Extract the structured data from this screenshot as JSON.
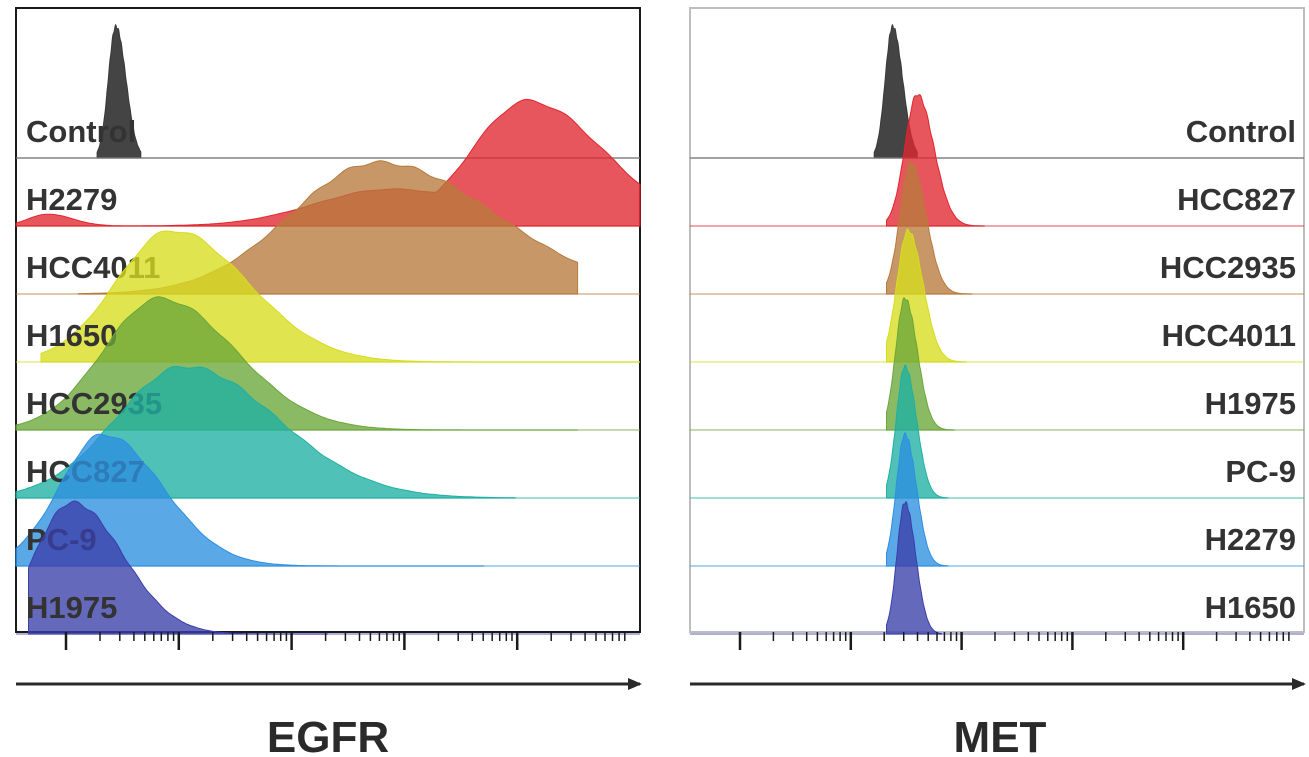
{
  "chart_data": [
    {
      "type": "area",
      "chart_kind": "staggered flow cytometry histograms",
      "xlabel": "EGFR",
      "x_scale": "log",
      "rows": [
        {
          "name": "Control",
          "peaks": [
            {
              "mode": 0.16,
              "width": 0.012,
              "height": 1.0
            }
          ],
          "range": [
            0.13,
            0.2
          ],
          "color": "#3a3a3a"
        },
        {
          "name": "H2279",
          "peaks": [
            {
              "mode": 0.82,
              "width": 0.09,
              "height": 0.95
            },
            {
              "mode": 0.6,
              "width": 0.12,
              "height": 0.28
            },
            {
              "mode": 0.05,
              "width": 0.03,
              "height": 0.09
            }
          ],
          "range": [
            0.0,
            1.0
          ],
          "color": "#e0262e"
        },
        {
          "name": "HCC4011",
          "peaks": [
            {
              "mode": 0.58,
              "width": 0.14,
              "height": 1.0
            },
            {
              "mode": 0.42,
              "width": 0.08,
              "height": 0.25
            }
          ],
          "range": [
            0.1,
            0.9
          ],
          "color": "#b87a3c"
        },
        {
          "name": "H1650",
          "peaks": [
            {
              "mode": 0.25,
              "width": 0.09,
              "height": 1.0
            }
          ],
          "range": [
            0.04,
            1.0
          ],
          "color": "#d6dc1e"
        },
        {
          "name": "HCC2935",
          "peaks": [
            {
              "mode": 0.23,
              "width": 0.09,
              "height": 1.0
            }
          ],
          "range": [
            0.0,
            0.9
          ],
          "color": "#6aa63a"
        },
        {
          "name": "HCC827",
          "peaks": [
            {
              "mode": 0.27,
              "width": 0.11,
              "height": 1.0
            }
          ],
          "range": [
            0.0,
            0.8
          ],
          "color": "#1fb0a2"
        },
        {
          "name": "PC-9",
          "peaks": [
            {
              "mode": 0.14,
              "width": 0.07,
              "height": 1.0
            }
          ],
          "range": [
            0.0,
            0.75
          ],
          "color": "#2d8fe0"
        },
        {
          "name": "H1975",
          "peaks": [
            {
              "mode": 0.09,
              "width": 0.06,
              "height": 1.0
            }
          ],
          "range": [
            0.02,
            0.5
          ],
          "color": "#3a3fa8"
        }
      ]
    },
    {
      "type": "area",
      "chart_kind": "staggered flow cytometry histograms",
      "xlabel": "MET",
      "x_scale": "log",
      "rows": [
        {
          "name": "Control",
          "peaks": [
            {
              "mode": 0.33,
              "width": 0.012,
              "height": 1.0
            }
          ],
          "range": [
            0.3,
            0.37
          ],
          "color": "#3a3a3a"
        },
        {
          "name": "HCC827",
          "peaks": [
            {
              "mode": 0.37,
              "width": 0.02,
              "height": 1.0
            }
          ],
          "range": [
            0.32,
            0.48
          ],
          "color": "#e0262e"
        },
        {
          "name": "HCC2935",
          "peaks": [
            {
              "mode": 0.36,
              "width": 0.018,
              "height": 1.0
            }
          ],
          "range": [
            0.32,
            0.46
          ],
          "color": "#b87a3c"
        },
        {
          "name": "HCC4011",
          "peaks": [
            {
              "mode": 0.355,
              "width": 0.018,
              "height": 1.0
            }
          ],
          "range": [
            0.32,
            0.45
          ],
          "color": "#d6dc1e"
        },
        {
          "name": "H1975",
          "peaks": [
            {
              "mode": 0.35,
              "width": 0.015,
              "height": 1.0
            }
          ],
          "range": [
            0.32,
            0.43
          ],
          "color": "#6aa63a"
        },
        {
          "name": "PC-9",
          "peaks": [
            {
              "mode": 0.35,
              "width": 0.014,
              "height": 1.0
            }
          ],
          "range": [
            0.32,
            0.42
          ],
          "color": "#1fb0a2"
        },
        {
          "name": "H2279",
          "peaks": [
            {
              "mode": 0.35,
              "width": 0.014,
              "height": 1.0
            }
          ],
          "range": [
            0.32,
            0.42
          ],
          "color": "#2d8fe0"
        },
        {
          "name": "H1650",
          "peaks": [
            {
              "mode": 0.35,
              "width": 0.013,
              "height": 1.0
            }
          ],
          "range": [
            0.32,
            0.41
          ],
          "color": "#3a3fa8"
        }
      ]
    }
  ]
}
